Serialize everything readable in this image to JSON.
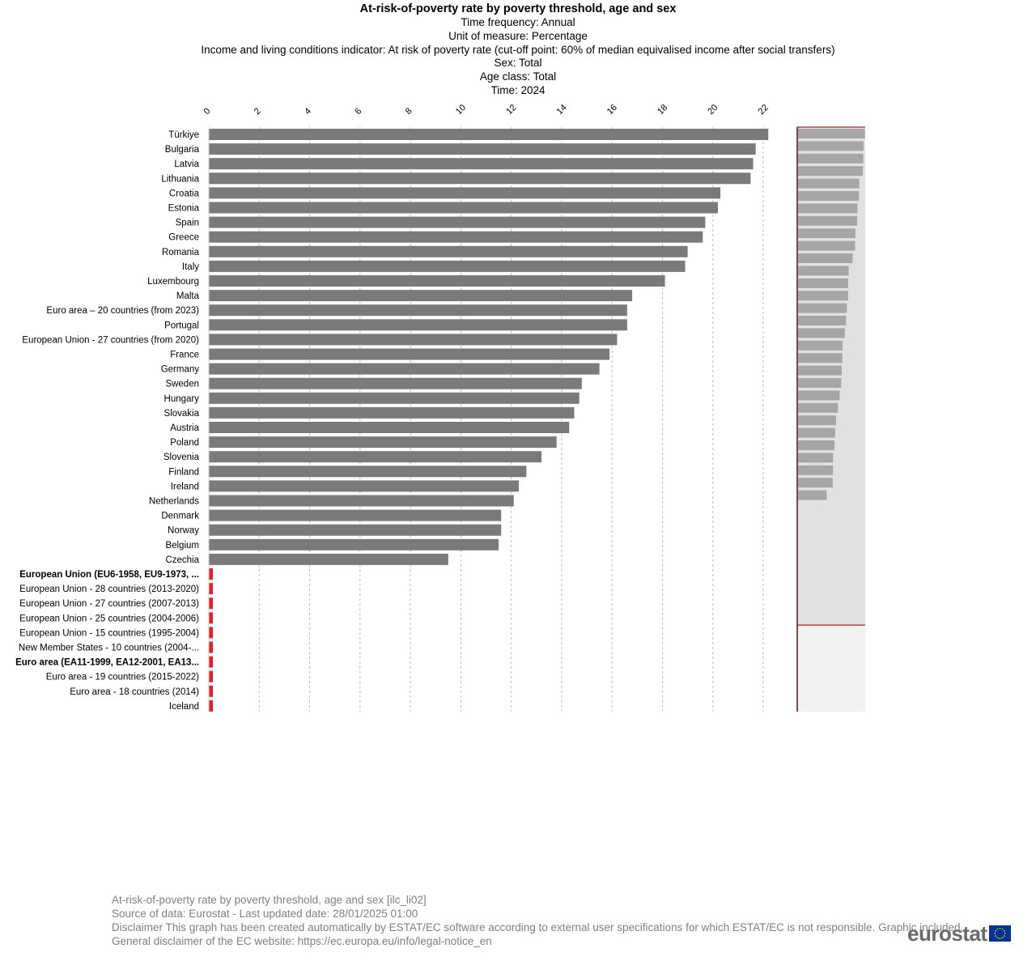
{
  "header": {
    "title": "At-risk-of-poverty rate by poverty threshold, age and sex",
    "lines": [
      "Time frequency:  Annual",
      "Unit of measure:  Percentage",
      "Income and living conditions indicator:  At risk of poverty rate (cut-off point: 60% of median equivalised income after social transfers)",
      "Sex:  Total",
      "Age class:  Total",
      "Time:  2024"
    ]
  },
  "chart_data": {
    "type": "bar",
    "orientation": "horizontal",
    "xlim": [
      0,
      22
    ],
    "xticks": [
      "0",
      "2",
      "4",
      "6",
      "8",
      "10",
      "12",
      "14",
      "16",
      "18",
      "20",
      "22"
    ],
    "grid": "vertical dashed",
    "bar_color": "#7a7a7a",
    "missing_color": "#ee1c25",
    "categories": [
      {
        "label": "Türkiye",
        "value": 22.2,
        "bold": false
      },
      {
        "label": "Bulgaria",
        "value": 21.7,
        "bold": false
      },
      {
        "label": "Latvia",
        "value": 21.6,
        "bold": false
      },
      {
        "label": "Lithuania",
        "value": 21.5,
        "bold": false
      },
      {
        "label": "Croatia",
        "value": 20.3,
        "bold": false
      },
      {
        "label": "Estonia",
        "value": 20.2,
        "bold": false
      },
      {
        "label": "Spain",
        "value": 19.7,
        "bold": false
      },
      {
        "label": "Greece",
        "value": 19.6,
        "bold": false
      },
      {
        "label": "Romania",
        "value": 19.0,
        "bold": false
      },
      {
        "label": "Italy",
        "value": 18.9,
        "bold": false
      },
      {
        "label": "Luxembourg",
        "value": 18.1,
        "bold": false
      },
      {
        "label": "Malta",
        "value": 16.8,
        "bold": false
      },
      {
        "label": "Euro area – 20 countries (from 2023)",
        "value": 16.6,
        "bold": false
      },
      {
        "label": "Portugal",
        "value": 16.6,
        "bold": false
      },
      {
        "label": "European Union - 27 countries (from 2020)",
        "value": 16.2,
        "bold": false
      },
      {
        "label": "France",
        "value": 15.9,
        "bold": false
      },
      {
        "label": "Germany",
        "value": 15.5,
        "bold": false
      },
      {
        "label": "Sweden",
        "value": 14.8,
        "bold": false
      },
      {
        "label": "Hungary",
        "value": 14.7,
        "bold": false
      },
      {
        "label": "Slovakia",
        "value": 14.5,
        "bold": false
      },
      {
        "label": "Austria",
        "value": 14.3,
        "bold": false
      },
      {
        "label": "Poland",
        "value": 13.8,
        "bold": false
      },
      {
        "label": "Slovenia",
        "value": 13.2,
        "bold": false
      },
      {
        "label": "Finland",
        "value": 12.6,
        "bold": false
      },
      {
        "label": "Ireland",
        "value": 12.3,
        "bold": false
      },
      {
        "label": "Netherlands",
        "value": 12.1,
        "bold": false
      },
      {
        "label": "Denmark",
        "value": 11.6,
        "bold": false
      },
      {
        "label": "Norway",
        "value": 11.6,
        "bold": false
      },
      {
        "label": "Belgium",
        "value": 11.5,
        "bold": false
      },
      {
        "label": "Czechia",
        "value": 9.5,
        "bold": false
      },
      {
        "label": "European Union (EU6-1958, EU9-1973, ...",
        "value": null,
        "bold": true
      },
      {
        "label": "European Union - 28 countries (2013-2020)",
        "value": null,
        "bold": false
      },
      {
        "label": "European Union - 27 countries (2007-2013)",
        "value": null,
        "bold": false
      },
      {
        "label": "European Union - 25 countries (2004-2006)",
        "value": null,
        "bold": false
      },
      {
        "label": "European Union - 15 countries (1995-2004)",
        "value": null,
        "bold": false
      },
      {
        "label": "New Member States - 10 countries (2004-...",
        "value": null,
        "bold": false
      },
      {
        "label": "Euro area (EA11-1999, EA12-2001, EA13...",
        "value": null,
        "bold": true
      },
      {
        "label": "Euro area - 19 countries  (2015-2022)",
        "value": null,
        "bold": false
      },
      {
        "label": "Euro area - 18 countries (2014)",
        "value": null,
        "bold": false
      },
      {
        "label": "Iceland",
        "value": null,
        "bold": false
      }
    ]
  },
  "footer": {
    "lines": [
      "At-risk-of-poverty rate by poverty threshold, age and sex [ilc_li02]",
      "Source of data: Eurostat - Last updated date: 28/01/2025 01:00",
      "Disclaimer This graph has been created automatically by ESTAT/EC software according to external user specifications for which ESTAT/EC is not responsible. Graphic included.",
      "General disclaimer of the EC website: https://ec.europa.eu/info/legal-notice_en"
    ]
  },
  "logo": {
    "word": "eurostat",
    "flag_blue": "#003399",
    "flag_stars": "#ffcc00"
  }
}
